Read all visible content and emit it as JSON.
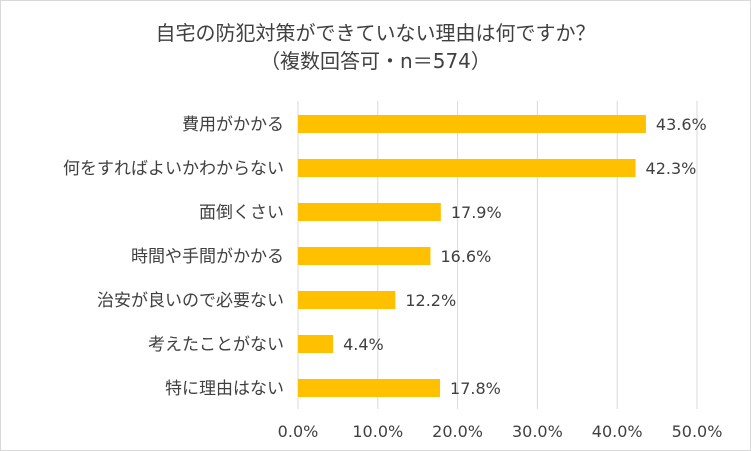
{
  "chart_data": {
    "type": "bar",
    "orientation": "horizontal",
    "title": "自宅の防犯対策ができていない理由は何ですか？",
    "subtitle": "（複数回答可・n＝574）",
    "categories": [
      "費用がかかる",
      "何をすればよいかわからない",
      "面倒くさい",
      "時間や手間がかかる",
      "治安が良いので必要ない",
      "考えたことがない",
      "特に理由はない"
    ],
    "values": [
      43.6,
      42.3,
      17.9,
      16.6,
      12.2,
      4.4,
      17.8
    ],
    "value_labels": [
      "43.6%",
      "42.3%",
      "17.9%",
      "16.6%",
      "12.2%",
      "4.4%",
      "17.8%"
    ],
    "xlim": [
      0,
      50
    ],
    "xticks": [
      0,
      10,
      20,
      30,
      40,
      50
    ],
    "xtick_labels": [
      "0.0%",
      "10.0%",
      "20.0%",
      "30.0%",
      "40.0%",
      "50.0%"
    ],
    "grid": "vertical",
    "legend": "none",
    "bar_color": "#ffc000",
    "grid_color": "#d9d9d9"
  }
}
